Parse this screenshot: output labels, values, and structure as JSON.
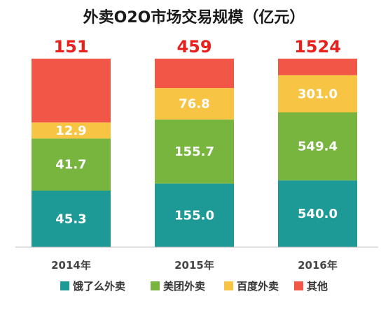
{
  "chart_data": {
    "type": "bar",
    "stacked": true,
    "title": "外卖O2O市场交易规模（亿元）",
    "categories": [
      "2014年",
      "2015年",
      "2016年"
    ],
    "totals": [
      "151",
      "459",
      "1524"
    ],
    "series": [
      {
        "name": "饿了么外卖",
        "color": "#1e9a96",
        "values": [
          45.3,
          155.0,
          540.0
        ],
        "labels": [
          "45.3",
          "155.0",
          "540.0"
        ]
      },
      {
        "name": "美团外卖",
        "color": "#78b53f",
        "values": [
          41.7,
          155.7,
          549.4
        ],
        "labels": [
          "41.7",
          "155.7",
          "549.4"
        ]
      },
      {
        "name": "百度外卖",
        "color": "#f8c444",
        "values": [
          12.9,
          76.8,
          301.0
        ],
        "labels": [
          "12.9",
          "76.8",
          "301.0"
        ]
      },
      {
        "name": "其他",
        "color": "#f25646",
        "values": [
          51.1,
          71.5,
          133.6
        ],
        "labels": [
          "",
          "",
          ""
        ]
      }
    ],
    "legend_position": "bottom",
    "grid": false,
    "normalized_heights": true
  }
}
